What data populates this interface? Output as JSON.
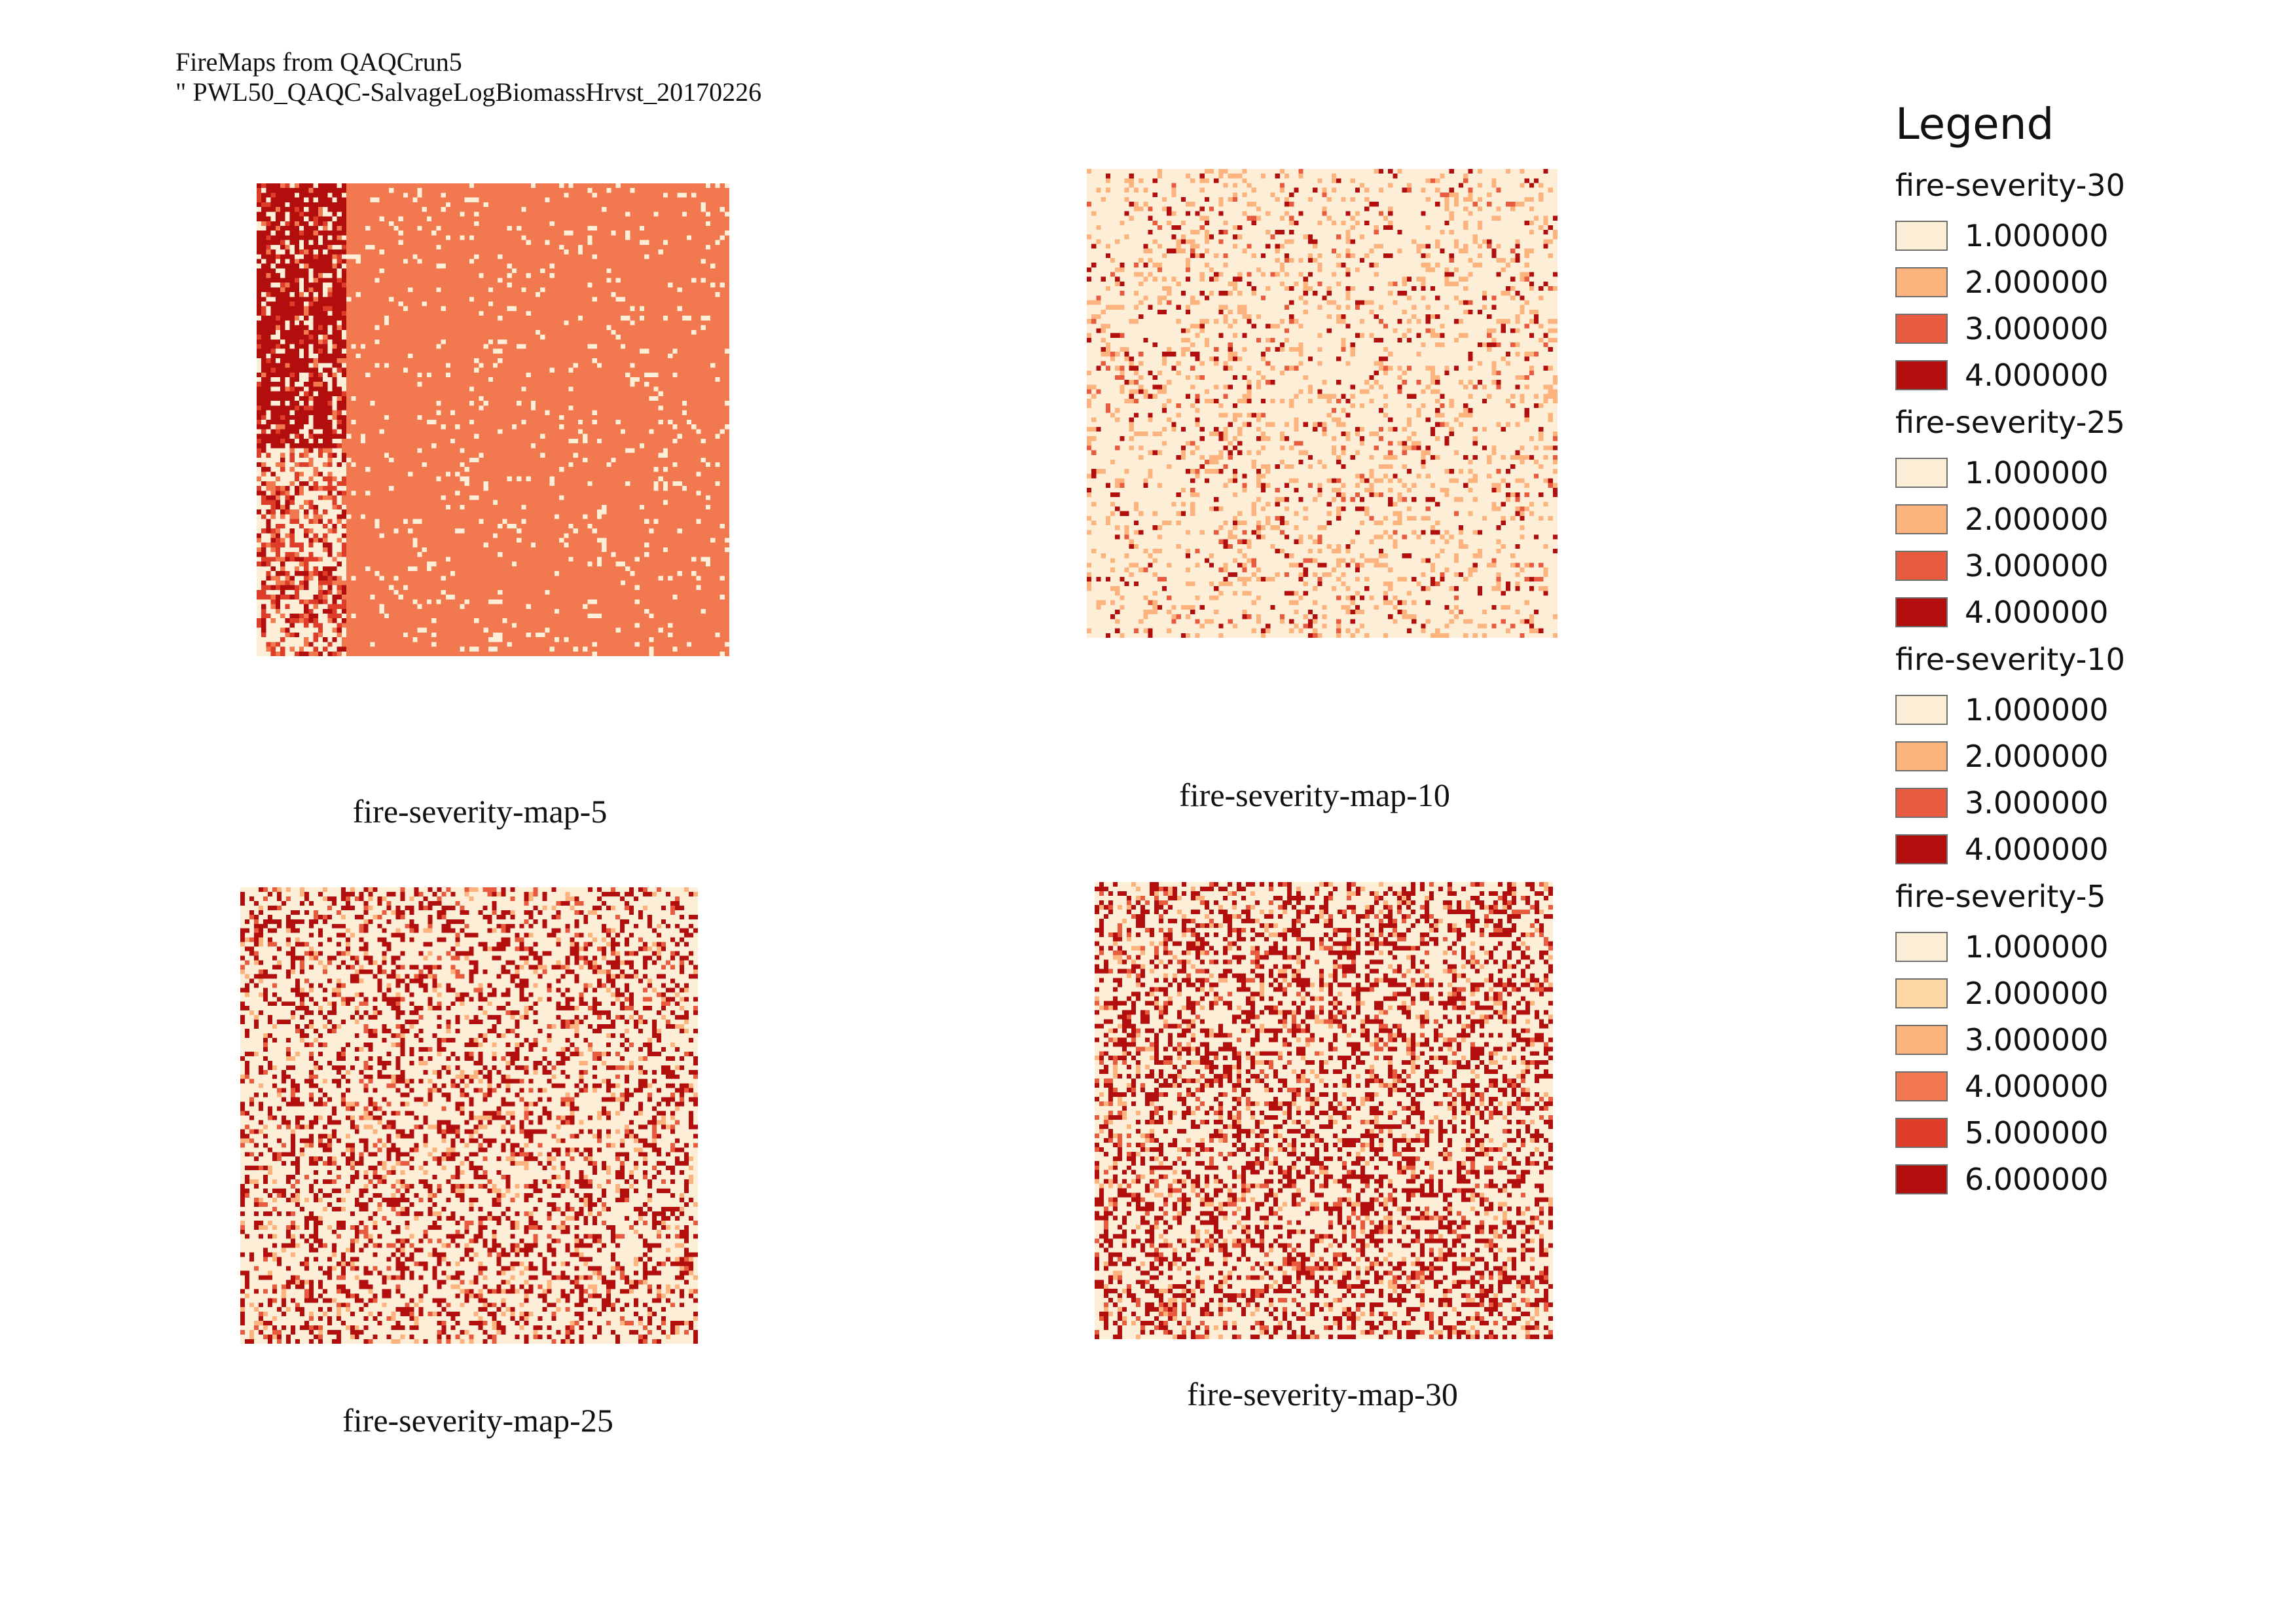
{
  "title": {
    "line1": "FireMaps from QAQCrun5",
    "line2": "\" PWL50_QAQC-SalvageLogBiomassHrvst_20170226"
  },
  "maps": [
    {
      "id": "map-5",
      "caption": "fire-severity-map-5",
      "palette": [
        "#fdeed8",
        "#fdd7a3",
        "#fcb37e",
        "#f2794f",
        "#de3d2a",
        "#b20e0e"
      ],
      "base_class": 4,
      "speckle": [
        {
          "class": 1,
          "p": 0.07
        }
      ],
      "strip": {
        "fraction": 0.19,
        "class": 6,
        "mix": [
          {
            "class": 1,
            "p": 0.35
          },
          {
            "class": 5,
            "p": 0.15
          },
          {
            "class": 4,
            "p": 0.1
          }
        ]
      }
    },
    {
      "id": "map-10",
      "caption": "fire-severity-map-10",
      "palette": [
        "#fdeed8",
        "#fcb37e",
        "#e85b3f",
        "#b20e0e"
      ],
      "base_class": 1,
      "speckle": [
        {
          "class": 2,
          "p": 0.14
        },
        {
          "class": 4,
          "p": 0.05
        },
        {
          "class": 3,
          "p": 0.02
        }
      ]
    },
    {
      "id": "map-25",
      "caption": "fire-severity-map-25",
      "palette": [
        "#fdeed8",
        "#fcb37e",
        "#e85b3f",
        "#b20e0e"
      ],
      "base_class": 1,
      "speckle": [
        {
          "class": 4,
          "p": 0.24
        },
        {
          "class": 2,
          "p": 0.06
        },
        {
          "class": 3,
          "p": 0.05
        }
      ]
    },
    {
      "id": "map-30",
      "caption": "fire-severity-map-30",
      "palette": [
        "#fdeed8",
        "#fcb37e",
        "#e85b3f",
        "#b20e0e"
      ],
      "base_class": 1,
      "speckle": [
        {
          "class": 4,
          "p": 0.28
        },
        {
          "class": 2,
          "p": 0.07
        },
        {
          "class": 3,
          "p": 0.06
        }
      ]
    }
  ],
  "legend": {
    "title": "Legend",
    "groups": [
      {
        "name": "fire-severity-30",
        "items": [
          {
            "label": "1.000000",
            "color": "#fdeed8"
          },
          {
            "label": "2.000000",
            "color": "#fcb37e"
          },
          {
            "label": "3.000000",
            "color": "#e85b3f"
          },
          {
            "label": "4.000000",
            "color": "#b20e0e"
          }
        ]
      },
      {
        "name": "fire-severity-25",
        "items": [
          {
            "label": "1.000000",
            "color": "#fdeed8"
          },
          {
            "label": "2.000000",
            "color": "#fcb37e"
          },
          {
            "label": "3.000000",
            "color": "#e85b3f"
          },
          {
            "label": "4.000000",
            "color": "#b20e0e"
          }
        ]
      },
      {
        "name": "fire-severity-10",
        "items": [
          {
            "label": "1.000000",
            "color": "#fdeed8"
          },
          {
            "label": "2.000000",
            "color": "#fcb37e"
          },
          {
            "label": "3.000000",
            "color": "#e85b3f"
          },
          {
            "label": "4.000000",
            "color": "#b20e0e"
          }
        ]
      },
      {
        "name": "fire-severity-5",
        "items": [
          {
            "label": "1.000000",
            "color": "#fdeed8"
          },
          {
            "label": "2.000000",
            "color": "#fdd7a3"
          },
          {
            "label": "3.000000",
            "color": "#fcb37e"
          },
          {
            "label": "4.000000",
            "color": "#f2794f"
          },
          {
            "label": "5.000000",
            "color": "#de3d2a"
          },
          {
            "label": "6.000000",
            "color": "#b20e0e"
          }
        ]
      }
    ]
  }
}
